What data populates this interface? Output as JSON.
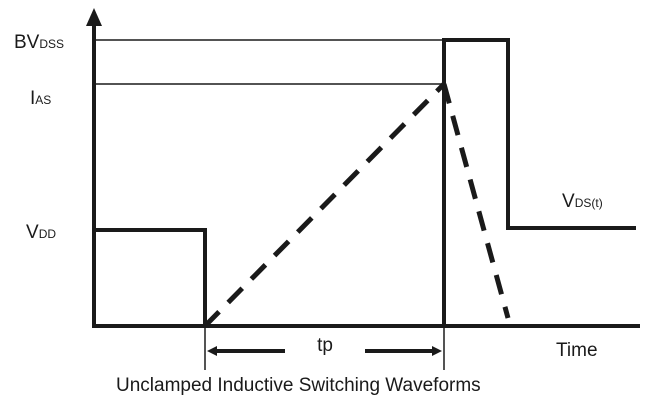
{
  "diagram": {
    "caption": "Unclamped Inductive Switching Waveforms",
    "axis_labels": {
      "x": "Time"
    },
    "y_labels": {
      "bvdss": {
        "main": "BV",
        "sub": "DSS"
      },
      "ias": {
        "main": "I",
        "sub": "AS"
      },
      "vdd": {
        "main": "V",
        "sub": "DD"
      }
    },
    "trace_label": {
      "main": "V",
      "sub": "DS(t)"
    },
    "interval_label": "tp",
    "colors": {
      "ink": "#1a1a1a"
    }
  }
}
